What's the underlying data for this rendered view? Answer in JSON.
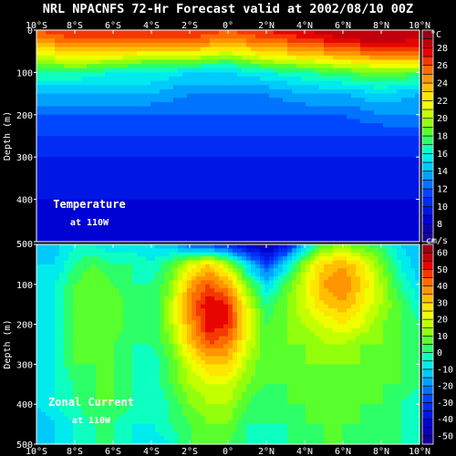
{
  "title": "NRL NPACNFS 72-Hr Forecast valid at 2002/08/10 00Z",
  "chart_data": [
    {
      "type": "heatmap",
      "label": "Temperature",
      "sublabel": "at 110W",
      "ylabel": "Depth (m)",
      "x_tick_labels": [
        "10°S",
        "8°S",
        "6°S",
        "4°S",
        "2°S",
        "0°",
        "2°N",
        "4°N",
        "6°N",
        "8°N",
        "10°N"
      ],
      "x_ticks": [
        -10,
        -8,
        -6,
        -4,
        -2,
        0,
        2,
        4,
        6,
        8,
        10
      ],
      "y_tick_labels": [
        "0",
        "100",
        "200",
        "300",
        "400",
        "500"
      ],
      "y_ticks": [
        0,
        100,
        200,
        300,
        400,
        500
      ],
      "xlim": [
        -10,
        10
      ],
      "ylim": [
        0,
        500
      ],
      "colorbar_unit": "°C",
      "colorbar_labels": [
        "8",
        "10",
        "12",
        "14",
        "16",
        "18",
        "20",
        "22",
        "24",
        "26",
        "28"
      ],
      "colorbar_min": 6,
      "colorbar_max": 30,
      "colorbar_step": 1,
      "profile_lat": [
        -10,
        -8,
        -6,
        -4,
        -2,
        0,
        2,
        4,
        6,
        8,
        10
      ],
      "profile_depth": [
        0,
        20,
        40,
        60,
        80,
        100,
        150,
        200,
        250,
        300,
        350,
        400,
        450,
        500
      ],
      "values": [
        [
          26,
          27,
          27,
          27,
          27,
          26,
          27,
          28,
          29,
          29,
          29
        ],
        [
          25,
          26,
          26,
          26,
          26,
          25,
          26,
          27,
          28,
          29,
          28
        ],
        [
          23,
          24,
          24,
          24,
          24,
          23,
          24,
          25,
          26,
          27,
          27
        ],
        [
          21,
          22,
          22,
          21,
          21,
          20,
          22,
          23,
          24,
          25,
          25
        ],
        [
          19,
          20,
          19,
          18,
          18,
          17,
          19,
          20,
          21,
          22,
          22
        ],
        [
          17,
          17,
          16,
          16,
          15,
          15,
          16,
          17,
          18,
          19,
          18
        ],
        [
          14,
          14,
          14,
          14,
          13,
          13,
          13,
          14,
          14,
          15,
          14
        ],
        [
          12,
          12,
          12,
          12,
          12,
          12,
          12,
          12,
          12,
          13,
          13
        ],
        [
          11,
          11,
          11,
          11,
          11,
          11,
          11,
          11,
          11,
          11,
          11
        ],
        [
          10,
          10,
          10,
          10,
          10,
          10,
          10,
          10,
          10,
          10,
          10
        ],
        [
          9.5,
          9.5,
          9.5,
          9.5,
          9.5,
          9.5,
          9.5,
          9.5,
          9.5,
          9.5,
          9.5
        ],
        [
          9,
          9,
          9,
          9,
          9,
          9,
          9,
          9,
          9,
          9,
          9
        ],
        [
          8.5,
          8.5,
          8.5,
          8.5,
          8.5,
          8.5,
          8.5,
          8.5,
          8.5,
          8.5,
          8.5
        ],
        [
          8,
          8,
          8,
          8,
          8,
          8,
          8,
          8,
          8,
          8,
          8
        ]
      ]
    },
    {
      "type": "heatmap",
      "label": "Zonal Current",
      "sublabel": "at 110W",
      "ylabel": "Depth (m)",
      "x_tick_labels": [
        "10°S",
        "8°S",
        "6°S",
        "4°S",
        "2°S",
        "0°",
        "2°N",
        "4°N",
        "6°N",
        "8°N",
        "10°N"
      ],
      "x_ticks": [
        -10,
        -8,
        -6,
        -4,
        -2,
        0,
        2,
        4,
        6,
        8,
        10
      ],
      "y_tick_labels": [
        "0",
        "100",
        "200",
        "300",
        "400",
        "500"
      ],
      "y_ticks": [
        0,
        100,
        200,
        300,
        400,
        500
      ],
      "xlim": [
        -10,
        10
      ],
      "ylim": [
        0,
        500
      ],
      "colorbar_unit": "cm/s",
      "colorbar_labels": [
        "-50",
        "-40",
        "-30",
        "-20",
        "-10",
        "0",
        "10",
        "20",
        "30",
        "40",
        "50",
        "60"
      ],
      "colorbar_min": -55,
      "colorbar_max": 65,
      "colorbar_step": 5,
      "profile_lat": [
        -10,
        -9,
        -8,
        -7,
        -6,
        -5,
        -4,
        -3,
        -2,
        -1,
        0,
        1,
        2,
        3,
        4,
        5,
        6,
        7,
        8,
        9,
        10
      ],
      "profile_depth": [
        0,
        50,
        100,
        150,
        200,
        250,
        300,
        350,
        400,
        450,
        500
      ],
      "values": [
        [
          -10,
          -12,
          -5,
          -5,
          -10,
          -8,
          -10,
          -15,
          -25,
          -30,
          -35,
          -45,
          -50,
          -40,
          -15,
          5,
          10,
          5,
          0,
          -10,
          -15
        ],
        [
          -10,
          -10,
          0,
          5,
          0,
          0,
          -5,
          5,
          20,
          30,
          15,
          -10,
          -30,
          -10,
          15,
          30,
          35,
          25,
          10,
          -5,
          -15
        ],
        [
          -10,
          -5,
          5,
          10,
          5,
          0,
          0,
          10,
          35,
          45,
          35,
          10,
          -10,
          5,
          20,
          35,
          40,
          30,
          15,
          0,
          -10
        ],
        [
          -10,
          -5,
          5,
          10,
          10,
          0,
          0,
          15,
          40,
          55,
          50,
          20,
          0,
          10,
          20,
          30,
          35,
          25,
          15,
          5,
          -5
        ],
        [
          -10,
          -5,
          5,
          5,
          10,
          0,
          0,
          15,
          35,
          55,
          50,
          25,
          5,
          10,
          15,
          20,
          25,
          20,
          10,
          5,
          0
        ],
        [
          -10,
          -5,
          5,
          5,
          5,
          0,
          0,
          10,
          30,
          45,
          40,
          20,
          5,
          10,
          10,
          15,
          15,
          10,
          10,
          5,
          0
        ],
        [
          -10,
          -5,
          5,
          5,
          5,
          0,
          -5,
          5,
          20,
          30,
          30,
          15,
          5,
          5,
          10,
          10,
          10,
          10,
          5,
          5,
          0
        ],
        [
          -10,
          -5,
          0,
          5,
          5,
          0,
          -5,
          5,
          15,
          20,
          20,
          10,
          5,
          5,
          5,
          10,
          5,
          5,
          5,
          5,
          0
        ],
        [
          -10,
          -5,
          0,
          5,
          5,
          0,
          -5,
          0,
          10,
          15,
          15,
          5,
          0,
          5,
          5,
          5,
          5,
          5,
          5,
          0,
          -5
        ],
        [
          -15,
          -10,
          -5,
          0,
          0,
          -5,
          -5,
          0,
          5,
          10,
          10,
          0,
          0,
          0,
          5,
          5,
          5,
          5,
          0,
          0,
          -5
        ],
        [
          -10,
          -10,
          -5,
          0,
          0,
          -5,
          -10,
          -5,
          5,
          5,
          5,
          0,
          -5,
          0,
          0,
          5,
          5,
          0,
          0,
          0,
          0
        ]
      ]
    }
  ]
}
